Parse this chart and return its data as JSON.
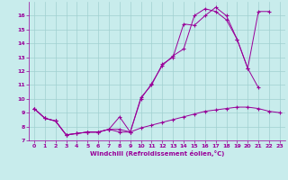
{
  "xlabel": "Windchill (Refroidissement éolien,°C)",
  "background_color": "#c8ecec",
  "grid_color": "#a0d0d0",
  "line_color": "#990099",
  "xlim": [
    -0.5,
    23.5
  ],
  "ylim": [
    7,
    17
  ],
  "xticks": [
    0,
    1,
    2,
    3,
    4,
    5,
    6,
    7,
    8,
    9,
    10,
    11,
    12,
    13,
    14,
    15,
    16,
    17,
    18,
    19,
    20,
    21,
    22,
    23
  ],
  "yticks": [
    7,
    8,
    9,
    10,
    11,
    12,
    13,
    14,
    15,
    16
  ],
  "series1_x": [
    0,
    1,
    2,
    3,
    4,
    5,
    6,
    7,
    8,
    9,
    10,
    11,
    12,
    13,
    14,
    15,
    16,
    17,
    18,
    19,
    20,
    21,
    22,
    23
  ],
  "series1_y": [
    9.3,
    8.6,
    8.4,
    7.4,
    7.5,
    7.6,
    7.6,
    7.8,
    7.8,
    7.6,
    7.9,
    8.1,
    8.3,
    8.5,
    8.7,
    8.9,
    9.1,
    9.2,
    9.3,
    9.4,
    9.4,
    9.3,
    9.1,
    9.0
  ],
  "series2_x": [
    0,
    1,
    2,
    3,
    4,
    5,
    6,
    7,
    8,
    9,
    10,
    11,
    12,
    13,
    14,
    15,
    16,
    17,
    18,
    19,
    20,
    21
  ],
  "series2_y": [
    9.3,
    8.6,
    8.4,
    7.4,
    7.5,
    7.6,
    7.6,
    7.8,
    7.6,
    7.6,
    10.1,
    11.0,
    12.5,
    13.0,
    15.4,
    15.3,
    16.0,
    16.6,
    16.0,
    14.3,
    12.2,
    10.8
  ],
  "series3_x": [
    0,
    1,
    2,
    3,
    4,
    5,
    6,
    7,
    8,
    9,
    10,
    11,
    12,
    13,
    14,
    15,
    16,
    17,
    18,
    19,
    20,
    21,
    22
  ],
  "series3_y": [
    9.3,
    8.6,
    8.4,
    7.4,
    7.5,
    7.6,
    7.6,
    7.8,
    8.7,
    7.6,
    10.0,
    11.1,
    12.4,
    13.1,
    13.6,
    16.0,
    16.5,
    16.3,
    15.7,
    14.3,
    12.2,
    16.3,
    16.3
  ]
}
